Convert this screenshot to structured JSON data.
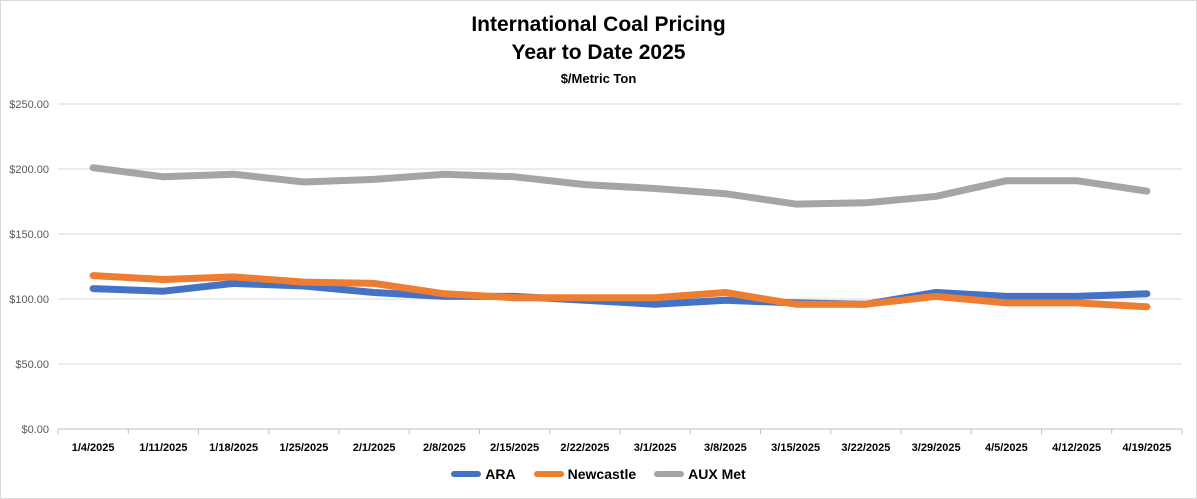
{
  "chart_data": {
    "type": "line",
    "title": "International Coal Pricing",
    "subtitle": "Year to Date 2025",
    "unit_label": "$/Metric Ton",
    "categories": [
      "1/4/2025",
      "1/11/2025",
      "1/18/2025",
      "1/25/2025",
      "2/1/2025",
      "2/8/2025",
      "2/15/2025",
      "2/22/2025",
      "3/1/2025",
      "3/8/2025",
      "3/15/2025",
      "3/22/2025",
      "3/29/2025",
      "4/5/2025",
      "4/12/2025",
      "4/19/2025"
    ],
    "y_ticks": [
      "$0.00",
      "$50.00",
      "$100.00",
      "$150.00",
      "$200.00",
      "$250.00"
    ],
    "ylim": [
      0,
      250
    ],
    "grid": true,
    "legend_position": "bottom",
    "series": [
      {
        "name": "ARA",
        "color": "#4472C4",
        "values": [
          108,
          106,
          112,
          110,
          105,
          102,
          102,
          99,
          96,
          99,
          97,
          96,
          105,
          102,
          102,
          104
        ]
      },
      {
        "name": "Newcastle",
        "color": "#ED7D31",
        "values": [
          118,
          115,
          117,
          113,
          112,
          104,
          101,
          101,
          101,
          105,
          96,
          96,
          102,
          97,
          97,
          94
        ]
      },
      {
        "name": "AUX Met",
        "color": "#A5A5A5",
        "values": [
          201,
          194,
          196,
          190,
          192,
          196,
          194,
          188,
          185,
          181,
          173,
          174,
          179,
          191,
          191,
          183
        ]
      }
    ]
  }
}
